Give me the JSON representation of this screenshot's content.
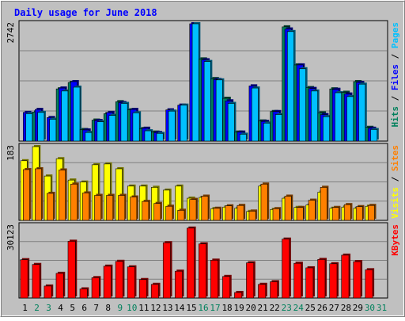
{
  "title": "Daily usage for June 2018",
  "colors": {
    "background": "#c0c0c0",
    "title": "#0000ff",
    "hits": "#00805c",
    "files": "#0000ff",
    "pages": "#00c0ff",
    "visits": "#ffff00",
    "sites": "#ff8000",
    "kbytes": "#ff0000"
  },
  "chart_data": [
    {
      "type": "bar",
      "panel": "hits-files-pages",
      "categories": [
        "1",
        "2",
        "3",
        "4",
        "5",
        "6",
        "7",
        "8",
        "9",
        "10",
        "11",
        "12",
        "13",
        "14",
        "15",
        "16",
        "17",
        "18",
        "19",
        "20",
        "21",
        "22",
        "23",
        "24",
        "25",
        "26",
        "27",
        "28",
        "29",
        "30",
        "31"
      ],
      "weekend_days": [
        "2",
        "3",
        "9",
        "10",
        "16",
        "17",
        "23",
        "24",
        "30",
        "31"
      ],
      "ymax_label": "2742",
      "ylim": [
        0,
        2742
      ],
      "ylabel": [
        "Hits",
        "Files",
        "Pages"
      ],
      "series": [
        {
          "name": "Hits",
          "values": [
            0,
            680,
            0,
            1220,
            1370,
            270,
            490,
            640,
            920,
            730,
            290,
            210,
            0,
            0,
            0,
            1920,
            1460,
            1000,
            210,
            0,
            470,
            690,
            2670,
            1780,
            1250,
            660,
            1220,
            1140,
            1390,
            320,
            0
          ]
        },
        {
          "name": "Files",
          "values": [
            670,
            740,
            550,
            1240,
            1390,
            260,
            480,
            670,
            900,
            740,
            300,
            200,
            730,
            840,
            2742,
            1900,
            1440,
            940,
            210,
            1290,
            460,
            690,
            2620,
            1780,
            1230,
            620,
            1210,
            1100,
            1370,
            300,
            0
          ]
        },
        {
          "name": "Pages",
          "values": [
            640,
            670,
            510,
            1170,
            1260,
            200,
            450,
            600,
            880,
            660,
            240,
            180,
            700,
            840,
            2742,
            1860,
            1430,
            880,
            160,
            1240,
            420,
            620,
            2560,
            1690,
            1170,
            570,
            1130,
            1040,
            1330,
            270,
            0
          ]
        }
      ]
    },
    {
      "type": "bar",
      "panel": "visits-sites",
      "categories": [
        "1",
        "2",
        "3",
        "4",
        "5",
        "6",
        "7",
        "8",
        "9",
        "10",
        "11",
        "12",
        "13",
        "14",
        "15",
        "16",
        "17",
        "18",
        "19",
        "20",
        "21",
        "22",
        "23",
        "24",
        "25",
        "26",
        "27",
        "28",
        "29",
        "30",
        "31"
      ],
      "ymax_label": "183",
      "ylim": [
        0,
        183
      ],
      "ylabel": [
        "Visits",
        "Sites"
      ],
      "series": [
        {
          "name": "Visits",
          "values": [
            148,
            183,
            110,
            153,
            100,
            95,
            138,
            140,
            128,
            85,
            85,
            82,
            75,
            85,
            55,
            57,
            29,
            33,
            30,
            22,
            85,
            27,
            55,
            32,
            38,
            70,
            30,
            33,
            30,
            35,
            0
          ]
        },
        {
          "name": "Sites",
          "values": [
            126,
            128,
            67,
            125,
            90,
            68,
            62,
            62,
            62,
            58,
            47,
            42,
            35,
            25,
            52,
            60,
            30,
            36,
            37,
            23,
            90,
            29,
            60,
            32,
            50,
            82,
            32,
            39,
            34,
            37,
            0
          ]
        }
      ]
    },
    {
      "type": "bar",
      "panel": "kbytes",
      "categories": [
        "1",
        "2",
        "3",
        "4",
        "5",
        "6",
        "7",
        "8",
        "9",
        "10",
        "11",
        "12",
        "13",
        "14",
        "15",
        "16",
        "17",
        "18",
        "19",
        "20",
        "21",
        "22",
        "23",
        "24",
        "25",
        "26",
        "27",
        "28",
        "29",
        "30",
        "31"
      ],
      "ymax_label": "30123",
      "ylim": [
        0,
        30123
      ],
      "ylabel": [
        "KBytes"
      ],
      "series": [
        {
          "name": "KBytes",
          "values": [
            16000,
            14000,
            5000,
            10300,
            23700,
            3800,
            8500,
            13300,
            15300,
            13000,
            7700,
            5700,
            23100,
            11200,
            29200,
            22600,
            15800,
            9000,
            2300,
            14700,
            5700,
            6800,
            24600,
            14500,
            12600,
            16100,
            14300,
            17900,
            15200,
            11800,
            0
          ]
        }
      ]
    }
  ]
}
